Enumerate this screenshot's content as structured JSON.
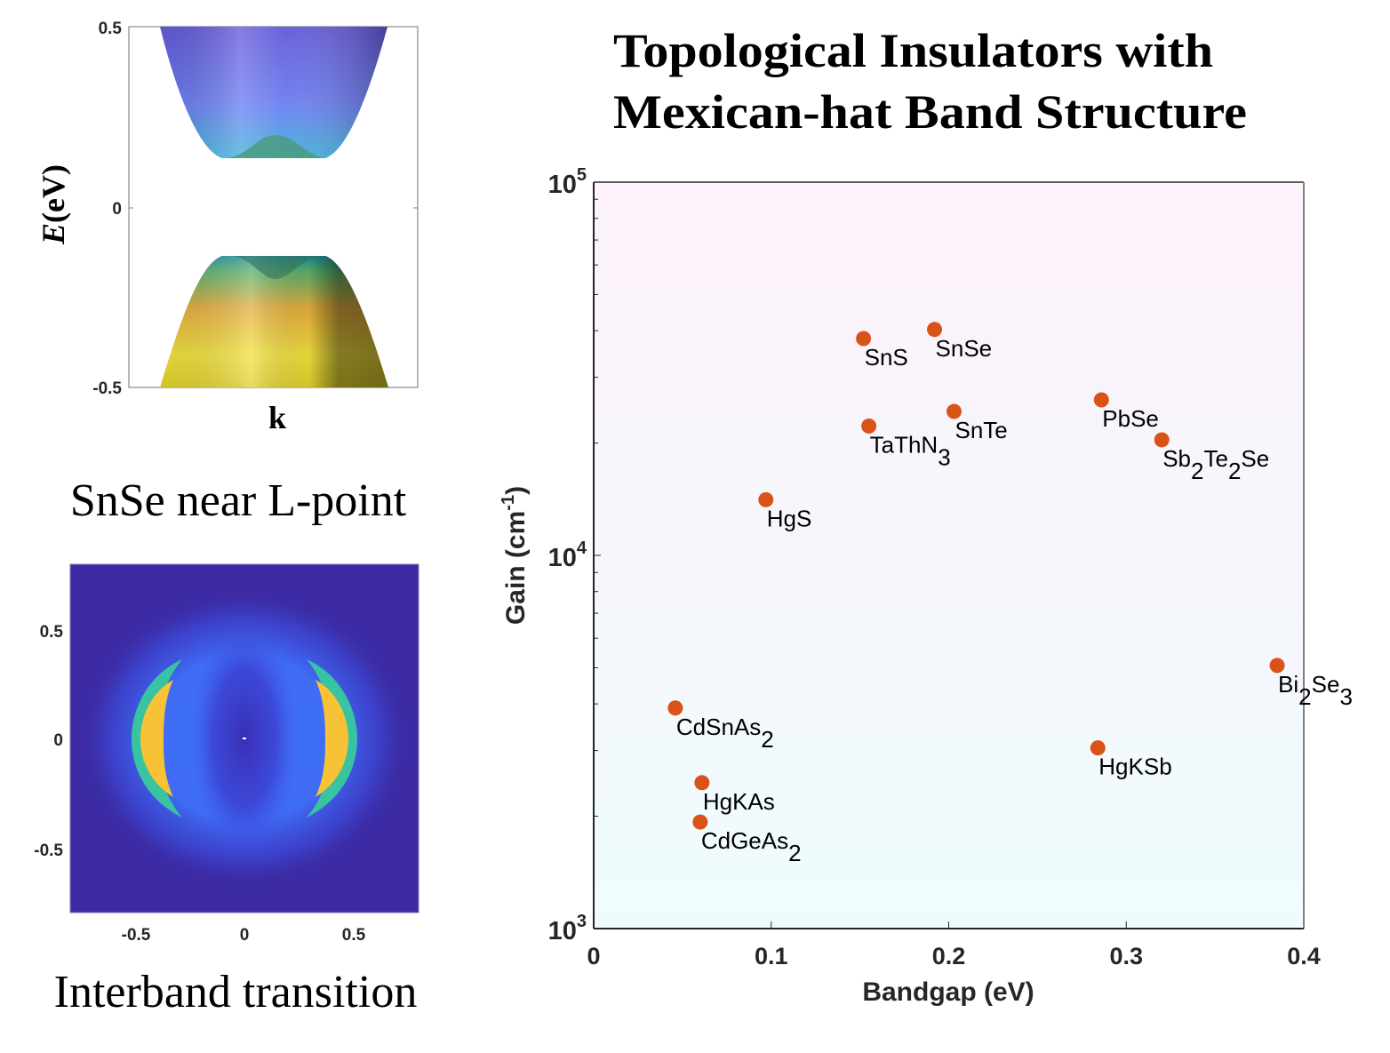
{
  "band_panel": {
    "ylabel_italic": "E",
    "ylabel_rest": "(eV)",
    "xlabel": "k",
    "yticks": [
      "0.5",
      "0",
      "-0.5"
    ],
    "caption": "SnSe near L-point",
    "colors": {
      "conduction_top": "#6a5fd6",
      "conduction_bottom": "#3fb0d6",
      "valence_top": "#2f8f8a",
      "valence_bottom": "#f5e23a"
    }
  },
  "heatmap_panel": {
    "xticks": [
      "-0.5",
      "0",
      "0.5"
    ],
    "yticks": [
      "0.5",
      "0",
      "-0.5"
    ],
    "caption": "Interband transition",
    "colors": {
      "background": "#3b2aa3",
      "mid": "#3f6cf5",
      "ring": "#2cc0a8",
      "peak": "#f8c82c"
    }
  },
  "chart_data": {
    "type": "scatter",
    "title_line1": "Topological Insulators with",
    "title_line2": "Mexican-hat Band Structure",
    "xlabel": "Bandgap (eV)",
    "ylabel": "Gain (cm",
    "ylabel_sup": "-1",
    "ylabel_close": ")",
    "xlim": [
      0,
      0.4
    ],
    "ylim": [
      1000,
      100000
    ],
    "yscale": "log",
    "xticks": [
      0,
      0.1,
      0.2,
      0.3,
      0.4
    ],
    "xtick_labels": [
      "0",
      "0.1",
      "0.2",
      "0.3",
      "0.4"
    ],
    "yticks": [
      1000,
      10000,
      100000
    ],
    "ytick_bases": [
      "10",
      "10",
      "10"
    ],
    "ytick_exps": [
      "3",
      "4",
      "5"
    ],
    "marker_color": "#d95319",
    "background_top": "#fdf1fc",
    "background_bottom": "#effcfd",
    "grid": false,
    "points": [
      {
        "name": "SnS",
        "label": [
          [
            "SnS",
            ""
          ]
        ],
        "x": 0.152,
        "y": 38100
      },
      {
        "name": "SnSe",
        "label": [
          [
            "SnSe",
            ""
          ]
        ],
        "x": 0.192,
        "y": 40300
      },
      {
        "name": "TaThN3",
        "label": [
          [
            "TaThN",
            "3"
          ]
        ],
        "x": 0.155,
        "y": 22200
      },
      {
        "name": "SnTe",
        "label": [
          [
            "SnTe",
            ""
          ]
        ],
        "x": 0.203,
        "y": 24300
      },
      {
        "name": "PbSe",
        "label": [
          [
            "PbSe",
            ""
          ]
        ],
        "x": 0.286,
        "y": 26100
      },
      {
        "name": "Sb2Te2Se",
        "label": [
          [
            "Sb",
            "2"
          ],
          [
            "Te",
            "2"
          ],
          [
            "Se",
            ""
          ]
        ],
        "x": 0.32,
        "y": 20400
      },
      {
        "name": "HgS",
        "label": [
          [
            "HgS",
            ""
          ]
        ],
        "x": 0.097,
        "y": 14100
      },
      {
        "name": "Bi2Se3",
        "label": [
          [
            "Bi",
            "2"
          ],
          [
            "Se",
            "3"
          ]
        ],
        "x": 0.385,
        "y": 5070
      },
      {
        "name": "CdSnAs2",
        "label": [
          [
            "CdSnAs",
            "2"
          ]
        ],
        "x": 0.046,
        "y": 3900
      },
      {
        "name": "HgKSb",
        "label": [
          [
            "HgKSb",
            ""
          ]
        ],
        "x": 0.284,
        "y": 3050
      },
      {
        "name": "HgKAs",
        "label": [
          [
            "HgKAs",
            ""
          ]
        ],
        "x": 0.061,
        "y": 2460
      },
      {
        "name": "CdGeAs2",
        "label": [
          [
            "CdGeAs",
            "2"
          ]
        ],
        "x": 0.06,
        "y": 1930
      }
    ]
  }
}
